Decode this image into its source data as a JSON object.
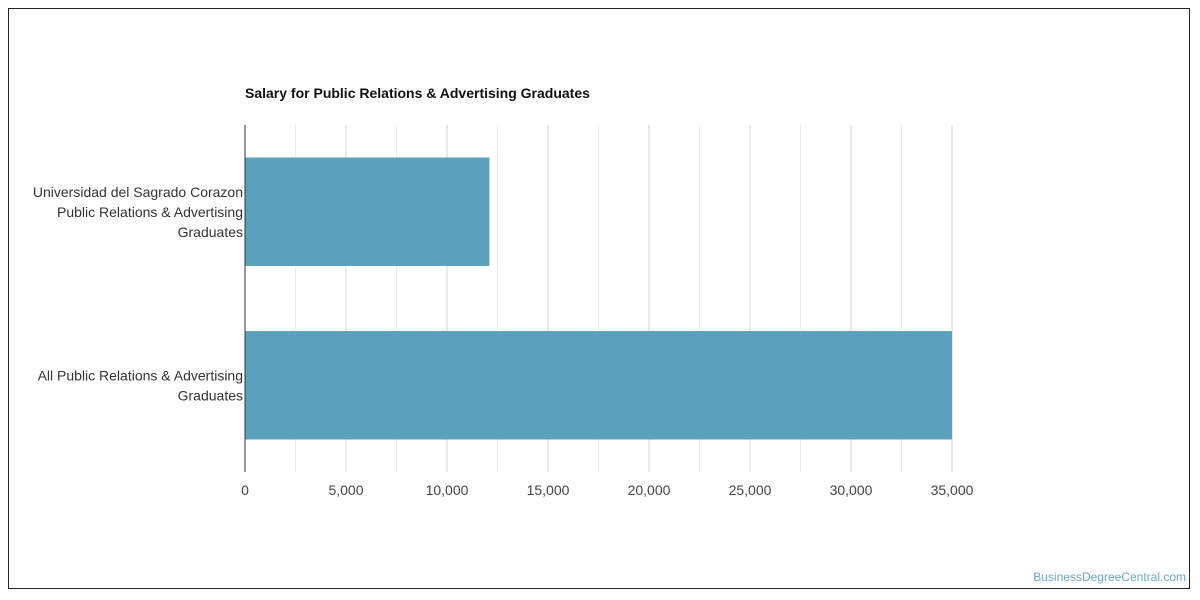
{
  "watermark": "BusinessDegreeCentral.com",
  "chart_data": {
    "type": "bar",
    "orientation": "horizontal",
    "title": "Salary for Public Relations & Advertising Graduates",
    "categories": [
      [
        "Universidad del Sagrado Corazon",
        "Public Relations & Advertising",
        "Graduates"
      ],
      [
        "All Public Relations & Advertising",
        "Graduates"
      ]
    ],
    "values": [
      12100,
      35000
    ],
    "xlim": [
      0,
      35000
    ],
    "xticks": [
      0,
      5000,
      10000,
      15000,
      20000,
      25000,
      30000,
      35000
    ],
    "xtick_labels": [
      "0",
      "5,000",
      "10,000",
      "15,000",
      "20,000",
      "25,000",
      "30,000",
      "35,000"
    ],
    "grid": true,
    "bar_color": "#5ba1be"
  }
}
